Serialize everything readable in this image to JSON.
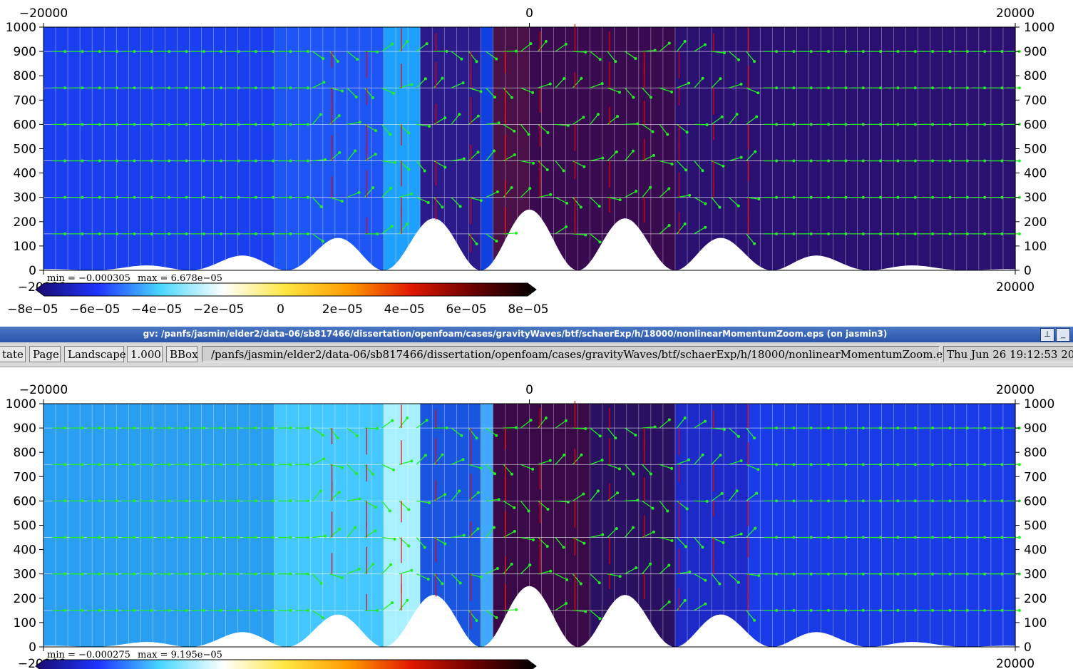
{
  "window": {
    "title": "gv: /panfs/jasmin/elder2/data-06/sb817466/dissertation/openfoam/cases/gravityWaves/btf/schaerExp/h/18000/nonlinearMomentumZoom.eps (on jasmin3)",
    "pin_icon": "pin-icon",
    "minimize_icon": "minimize-icon"
  },
  "toolbar": {
    "state_label": "tate",
    "page_label": "Page",
    "orientation_label": "Landscape",
    "scale_label": "1.000",
    "bbox_label": "BBox",
    "file_path": "/panfs/jasmin/elder2/data-06/sb817466/dissertation/openfoam/cases/gravityWaves/btf/schaerExp/h/18000/nonlinearMomentumZoom.eps",
    "date_text": "Thu Jun 26 19:12:53 20"
  },
  "axes": {
    "x_ticks": [
      "−20000",
      "0",
      "20000"
    ],
    "y_ticks": [
      "0",
      "100",
      "200",
      "300",
      "400",
      "500",
      "600",
      "700",
      "800",
      "900",
      "1000"
    ],
    "x_range": [
      -20000,
      20000
    ],
    "y_range": [
      0,
      1000
    ]
  },
  "colorbar": {
    "tick_labels": [
      "−8e−05",
      "−6e−05",
      "−4e−05",
      "−2e−05",
      "0",
      "2e−05",
      "4e−05",
      "6e−05",
      "8e−05"
    ],
    "colors": [
      "#1a0a6e",
      "#1e34ff",
      "#49d8ff",
      "#ffffff",
      "#ffe640",
      "#ff9a00",
      "#e01800",
      "#6a0000",
      "#000000"
    ]
  },
  "chart_data": [
    {
      "type": "heatmap",
      "panel": "top",
      "min_text": "min = −0.000305",
      "max_text": "max = 6.678e−05",
      "grid": true,
      "vector_colors": {
        "velocity": "#22ee22",
        "momentum": "#ee0000"
      },
      "levels": [
        150,
        300,
        450,
        600,
        750,
        900
      ]
    },
    {
      "type": "heatmap",
      "panel": "bottom",
      "min_text": "min = −0.000275",
      "max_text": "max = 9.195e−05",
      "grid": true,
      "vector_colors": {
        "velocity": "#22ee22",
        "momentum": "#ee0000"
      },
      "levels": [
        150,
        300,
        450,
        600,
        750,
        900
      ]
    }
  ]
}
